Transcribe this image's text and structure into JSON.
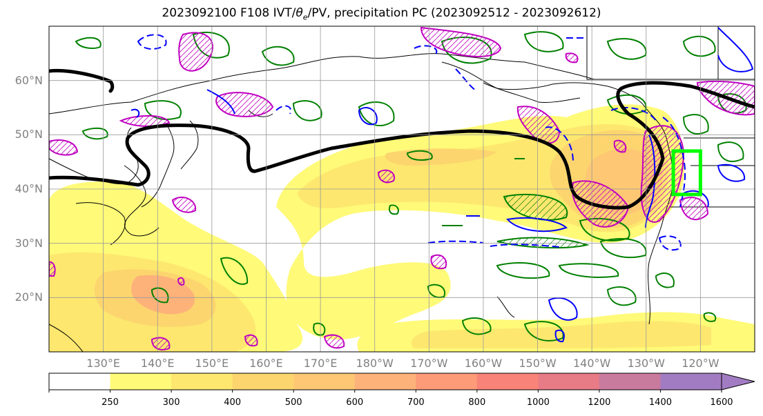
{
  "title_prefix": "2023092100 F108 IVT/",
  "title_theta": "θ",
  "title_sub": "e",
  "title_suffix": "/PV, precipitation PC (2023092512 - 2023092612)",
  "map": {
    "lon_range": [
      120,
      250
    ],
    "lat_range": [
      10,
      70
    ],
    "lat_labels": [
      "20°N",
      "30°N",
      "40°N",
      "50°N",
      "60°N"
    ],
    "lat_values": [
      20,
      30,
      40,
      50,
      60
    ],
    "lon_labels": [
      "130°E",
      "140°E",
      "150°E",
      "160°E",
      "170°E",
      "180°W",
      "170°W",
      "160°W",
      "150°W",
      "140°W",
      "130°W",
      "120°W"
    ],
    "lon_values": [
      130,
      140,
      150,
      160,
      170,
      180,
      190,
      200,
      210,
      220,
      230,
      240
    ],
    "grid": true,
    "target_box": {
      "lon": [
        235,
        240
      ],
      "lat": [
        39,
        47
      ],
      "color": "#00ff00"
    },
    "colors": {
      "ivt_fill": [
        "#ffffff",
        "#fffa78",
        "#fde76f",
        "#fcd56e",
        "#fdc774",
        "#fdb27a",
        "#fd9a78",
        "#f98378",
        "#e77b86",
        "#c97b9e",
        "#a27cc2"
      ],
      "pv": "#0000ff",
      "theta_e": "#008000",
      "precip_pc": "#c000c0",
      "jet": "#000000"
    }
  },
  "colorbar": {
    "ticks": [
      "250",
      "300",
      "400",
      "500",
      "600",
      "700",
      "800",
      "1000",
      "1200",
      "1400",
      "1600"
    ],
    "extend": "max"
  }
}
